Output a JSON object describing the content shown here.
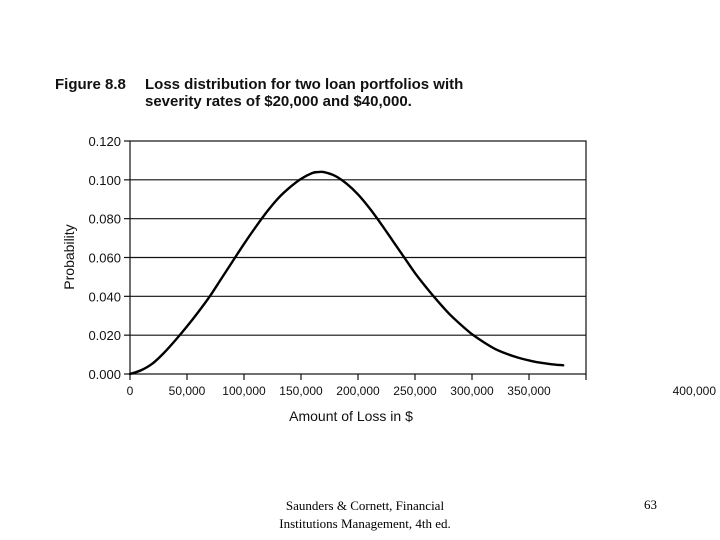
{
  "slide": {
    "figure_label": "Figure 8.8",
    "figure_title_line1": "Loss distribution for two loan portfolios with",
    "figure_title_line2": "severity rates of $20,000 and $40,000.",
    "source_line1": "Saunders & Cornett, Financial",
    "source_line2": "Institutions Management, 4th ed.",
    "page_number": "63"
  },
  "chart_data": {
    "type": "line",
    "title": "Loss distribution for two loan portfolios with severity rates of $20,000 and $40,000.",
    "xlabel": "Amount of Loss in $",
    "ylabel": "Probability",
    "xlim": [
      0,
      400000
    ],
    "ylim": [
      0,
      0.12
    ],
    "x_ticks": [
      "0",
      "50,000",
      "100,000",
      "150,000",
      "200,000",
      "250,000",
      "300,000",
      "350,000",
      "400,000"
    ],
    "y_ticks": [
      "0.000",
      "0.020",
      "0.040",
      "0.060",
      "0.080",
      "0.100",
      "0.120"
    ],
    "grid": "horizontal",
    "colors": {
      "line": "#000000",
      "grid": "#111111"
    },
    "series": [
      {
        "x": [
          0,
          10000,
          20000,
          30000,
          40000,
          50000,
          60000,
          70000,
          80000,
          90000,
          100000,
          110000,
          120000,
          130000,
          140000,
          150000,
          160000,
          165000,
          170000,
          180000,
          190000,
          200000,
          210000,
          220000,
          230000,
          240000,
          250000,
          260000,
          270000,
          280000,
          290000,
          300000,
          310000,
          320000,
          330000,
          340000,
          350000,
          360000,
          370000,
          380000
        ],
        "values": [
          0.0,
          0.002,
          0.0055,
          0.011,
          0.0175,
          0.0245,
          0.032,
          0.04,
          0.049,
          0.058,
          0.067,
          0.0755,
          0.0835,
          0.0905,
          0.096,
          0.1005,
          0.1035,
          0.104,
          0.104,
          0.102,
          0.098,
          0.0925,
          0.0855,
          0.0775,
          0.069,
          0.0605,
          0.052,
          0.0445,
          0.0375,
          0.031,
          0.0255,
          0.0205,
          0.0165,
          0.013,
          0.0105,
          0.0085,
          0.007,
          0.0058,
          0.005,
          0.0045
        ]
      }
    ]
  }
}
